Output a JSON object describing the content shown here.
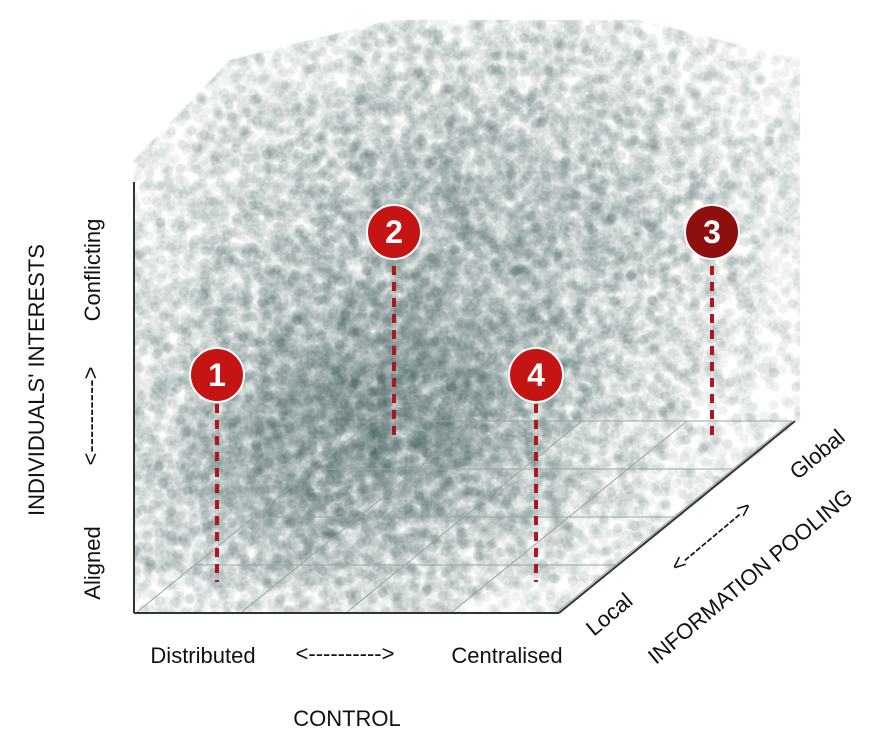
{
  "axes": {
    "control": {
      "title": "CONTROL",
      "low": "Distributed",
      "high": "Centralised",
      "arrow": "<---------->"
    },
    "interests": {
      "title": "INDIVIDUALS' INTERESTS",
      "low": "Aligned",
      "high": "Conflicting",
      "arrow": "<---------->"
    },
    "pooling": {
      "title": "INFORMATION POOLING",
      "low": "Local",
      "high": "Global",
      "arrow": "<---------->"
    }
  },
  "markers": [
    {
      "label": "1",
      "color": "#c41414"
    },
    {
      "label": "2",
      "color": "#c41414"
    },
    {
      "label": "3",
      "color": "#8e0f0f"
    },
    {
      "label": "4",
      "color": "#c41414"
    }
  ],
  "colors": {
    "cloud": "#3d5553",
    "marker": "#c41414",
    "marker_dark": "#8e0f0f",
    "dashes": "#b01818",
    "axis": "#333333",
    "grid": "#9aa5a3"
  }
}
